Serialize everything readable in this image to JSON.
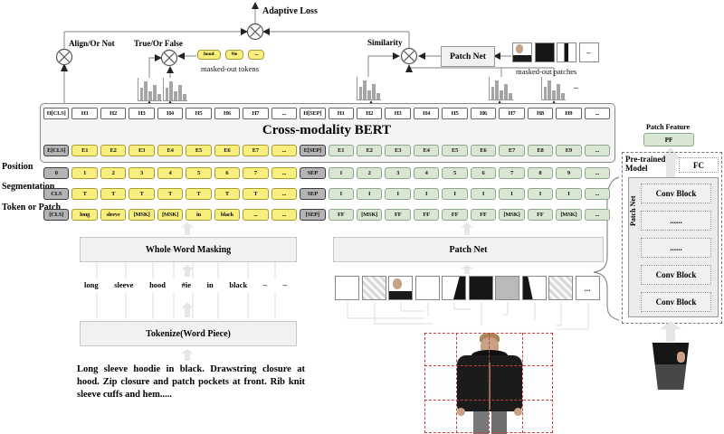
{
  "figure": {
    "top": {
      "adaptive_loss": "Adaptive Loss",
      "align": "Align/Or Not",
      "true_false": "True/Or False",
      "similarity": "Similarity",
      "patch_net": "Patch Net",
      "masked_tokens": [
        "hood",
        "#ie",
        "..."
      ],
      "masked_tokens_caption": "masked-out tokens",
      "masked_patches_caption": "masked-out patches",
      "masked_patches": [
        {
          "kind": "face"
        },
        {
          "kind": "black"
        },
        {
          "kind": "stripe"
        },
        {
          "kind": "dash"
        }
      ],
      "dash": "–"
    },
    "bert": {
      "title": "Cross-modality BERT",
      "h_row": [
        "H[CLS]",
        "H1",
        "H2",
        "H3",
        "H4",
        "H5",
        "H6",
        "H7",
        "...",
        "H[SEP]",
        "H1",
        "H2",
        "H3",
        "H4",
        "H5",
        "H6",
        "H7",
        "H8",
        "H9",
        "..."
      ],
      "e_row": [
        "E[CLS]",
        "E1",
        "E2",
        "E3",
        "E4",
        "E5",
        "E6",
        "E7",
        "...",
        "E[SEP]",
        "E1",
        "E2",
        "E3",
        "E4",
        "E5",
        "E6",
        "E7",
        "E8",
        "E9",
        "..."
      ]
    },
    "embedding_rows": [
      {
        "label": "Position",
        "cells": [
          "0",
          "1",
          "2",
          "3",
          "4",
          "5",
          "6",
          "7",
          "...",
          "SEP",
          "1",
          "2",
          "3",
          "4",
          "5",
          "6",
          "7",
          "8",
          "9",
          "..."
        ]
      },
      {
        "label": "Segmentation",
        "cells": [
          "CLS",
          "T",
          "T",
          "T",
          "T",
          "T",
          "T",
          "T",
          "...",
          "SEP",
          "I",
          "I",
          "I",
          "I",
          "I",
          "I",
          "I",
          "I",
          "I",
          "..."
        ]
      },
      {
        "label": "Token or Patch",
        "cells": [
          "[CLS]",
          "long",
          "sleeve",
          "[MSK]",
          "[MSK]",
          "in",
          "black",
          "...",
          "...",
          "[SEP]",
          "FF",
          "[MSK]",
          "FF",
          "FF",
          "FF",
          "FF",
          "[MSK]",
          "FF",
          "[MSK]",
          "..."
        ]
      }
    ],
    "col_kinds": [
      "grey",
      "yellow",
      "yellow",
      "yellow",
      "yellow",
      "yellow",
      "yellow",
      "yellow",
      "yellow",
      "grey",
      "green",
      "green",
      "green",
      "green",
      "green",
      "green",
      "green",
      "green",
      "green",
      "green"
    ],
    "text_branch": {
      "wwm_label": "Whole Word Masking",
      "words": [
        "long",
        "sleeve",
        "hood",
        "#ie",
        "in",
        "black",
        "–",
        "–"
      ],
      "tokenize_label": "Tokenize(Word Piece)",
      "description": "Long sleeve hoodie in black. Drawstring closure at hood. Zip closure and patch pockets at front. Rib knit sleeve cuffs and hem....."
    },
    "image_branch": {
      "patch_net_label": "Patch Net",
      "patches": [
        {
          "kind": "white"
        },
        {
          "kind": "hatch"
        },
        {
          "kind": "face"
        },
        {
          "kind": "white"
        },
        {
          "kind": "wedge-right"
        },
        {
          "kind": "black"
        },
        {
          "kind": "grey"
        },
        {
          "kind": "wedge-left"
        },
        {
          "kind": "hatch"
        },
        {
          "kind": "dots"
        }
      ]
    },
    "right_panel": {
      "patch_feature": "Patch Feature",
      "pf": "PF",
      "pretrained": "Pre-trained Model",
      "fc": "FC",
      "vertical_label": "Patch Net",
      "blocks": [
        "Conv Block",
        "......",
        "......",
        "Conv Block",
        "Conv Block"
      ]
    },
    "histogram_bars": [
      55,
      85,
      40,
      70,
      28
    ],
    "colors": {
      "token_yellow": "#f8ef7e",
      "patch_green": "#d9e7d2",
      "special_grey": "#b4b4b4",
      "grid_red": "#c54040"
    }
  }
}
